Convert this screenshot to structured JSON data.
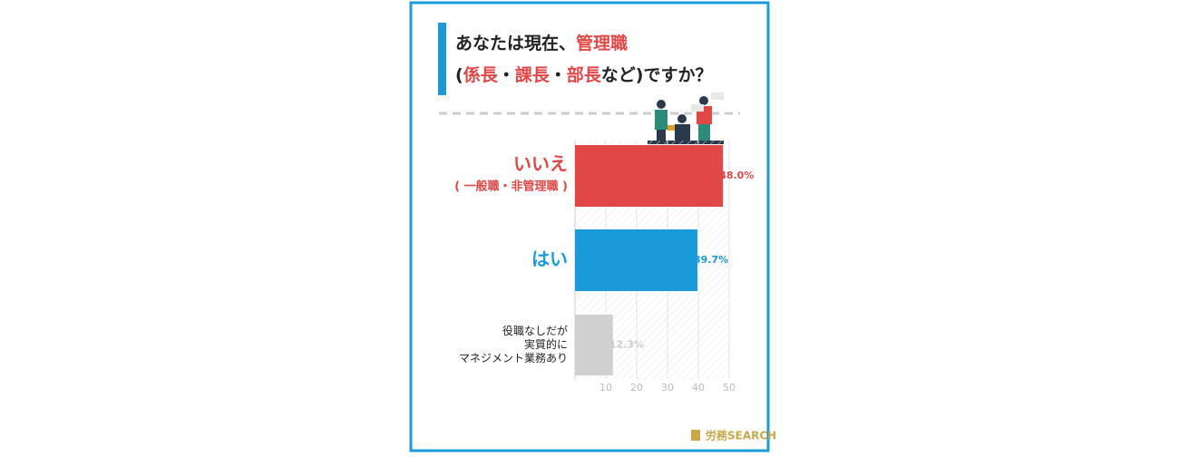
{
  "chart_data": {
    "type": "bar",
    "title_lines": [
      [
        {
          "text": "あなたは現在、",
          "color": "#222222"
        },
        {
          "text": "管理職",
          "color": "#e04848"
        }
      ],
      [
        {
          "text": "(",
          "color": "#222222"
        },
        {
          "text": "係長",
          "color": "#e04848"
        },
        {
          "text": "・",
          "color": "#222222"
        },
        {
          "text": "課長",
          "color": "#e04848"
        },
        {
          "text": "・",
          "color": "#222222"
        },
        {
          "text": "部長",
          "color": "#e04848"
        },
        {
          "text": "など)ですか？",
          "color": "#222222"
        }
      ]
    ],
    "categories": [
      [
        "いいえ",
        "( 一般職・非管理職 )"
      ],
      [
        "はい"
      ],
      [
        "役職なしだが",
        "実質的に",
        "マネジメント業務あり"
      ]
    ],
    "category_colors": [
      "#e04848",
      "#1a9ad8",
      "#222222"
    ],
    "values": [
      48.0,
      39.7,
      12.3
    ],
    "value_labels": [
      "48.0%",
      "39.7%",
      "12.3%"
    ],
    "colors": [
      "#e04848",
      "#1a9ad8",
      "#d0d0d0"
    ],
    "label_colors": [
      "#e04848",
      "#1a9ad8",
      "#cccccc"
    ],
    "xlim": [
      0,
      50
    ],
    "xticks": [
      10,
      20,
      30,
      40,
      50
    ],
    "grid": true,
    "logo": "労務SEARCH"
  }
}
